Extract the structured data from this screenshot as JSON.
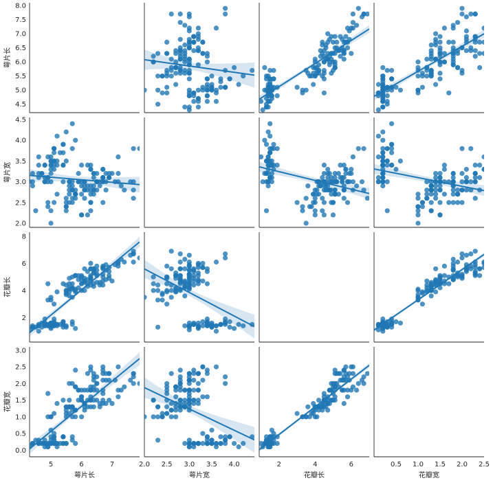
{
  "chart_data": {
    "type": "scatter",
    "kind": "pairplot-with-regression",
    "variables": [
      {
        "key": "sl",
        "label": "萼片长",
        "range": [
          4.3,
          7.9
        ],
        "ticks": [
          4.5,
          5.0,
          5.5,
          6.0,
          6.5,
          7.0,
          7.5,
          8.0
        ],
        "tick_labels": [
          "4.5",
          "5.0",
          "5.5",
          "6.0",
          "6.5",
          "7.0",
          "7.5",
          "8.0"
        ],
        "x_ticks": [
          5,
          6,
          7
        ],
        "x_tick_labels": [
          "5",
          "6",
          "7"
        ]
      },
      {
        "key": "sw",
        "label": "萼片宽",
        "range": [
          2.0,
          4.4
        ],
        "ticks": [
          2.0,
          2.5,
          3.0,
          3.5,
          4.0,
          4.5
        ],
        "tick_labels": [
          "2.0",
          "2.5",
          "3.0",
          "3.5",
          "4.0",
          "4.5"
        ],
        "x_ticks": [
          2.0,
          2.5,
          3.0,
          3.5,
          4.0
        ],
        "x_tick_labels": [
          "2.0",
          "2.5",
          "3.0",
          "3.5",
          "4.0"
        ]
      },
      {
        "key": "pl",
        "label": "花瓣长",
        "range": [
          1.0,
          6.9
        ],
        "ticks": [
          2,
          4,
          6,
          8
        ],
        "tick_labels": [
          "2",
          "4",
          "6",
          "8"
        ],
        "x_ticks": [
          2,
          4,
          6
        ],
        "x_tick_labels": [
          "2",
          "4",
          "6"
        ]
      },
      {
        "key": "pw",
        "label": "花瓣宽",
        "range": [
          0.1,
          2.5
        ],
        "ticks": [
          0.0,
          0.5,
          1.0,
          1.5,
          2.0,
          2.5,
          3.0
        ],
        "tick_labels": [
          "0.0",
          "0.5",
          "1.0",
          "1.5",
          "2.0",
          "2.5",
          "3.0"
        ],
        "x_ticks": [
          0.5,
          1.0,
          1.5,
          2.0,
          2.5
        ],
        "x_tick_labels": [
          "0.5",
          "1.0",
          "1.5",
          "2.0",
          "2.5"
        ]
      }
    ],
    "diagonal": "empty",
    "fit": "linear regression with 95% confidence band",
    "color": "#1f77b4",
    "band_color": "#1f77b4",
    "points": [
      [
        5.1,
        3.5,
        1.4,
        0.2
      ],
      [
        4.9,
        3.0,
        1.4,
        0.2
      ],
      [
        4.7,
        3.2,
        1.3,
        0.2
      ],
      [
        4.6,
        3.1,
        1.5,
        0.2
      ],
      [
        5.0,
        3.6,
        1.4,
        0.2
      ],
      [
        5.4,
        3.9,
        1.7,
        0.4
      ],
      [
        4.6,
        3.4,
        1.4,
        0.3
      ],
      [
        5.0,
        3.4,
        1.5,
        0.2
      ],
      [
        4.4,
        2.9,
        1.4,
        0.2
      ],
      [
        4.9,
        3.1,
        1.5,
        0.1
      ],
      [
        5.4,
        3.7,
        1.5,
        0.2
      ],
      [
        4.8,
        3.4,
        1.6,
        0.2
      ],
      [
        4.8,
        3.0,
        1.4,
        0.1
      ],
      [
        4.3,
        3.0,
        1.1,
        0.1
      ],
      [
        5.8,
        4.0,
        1.2,
        0.2
      ],
      [
        5.7,
        4.4,
        1.5,
        0.4
      ],
      [
        5.4,
        3.9,
        1.3,
        0.4
      ],
      [
        5.1,
        3.5,
        1.4,
        0.3
      ],
      [
        5.7,
        3.8,
        1.7,
        0.3
      ],
      [
        5.1,
        3.8,
        1.5,
        0.3
      ],
      [
        5.4,
        3.4,
        1.7,
        0.2
      ],
      [
        5.1,
        3.7,
        1.5,
        0.4
      ],
      [
        4.6,
        3.6,
        1.0,
        0.2
      ],
      [
        5.1,
        3.3,
        1.7,
        0.5
      ],
      [
        4.8,
        3.4,
        1.9,
        0.2
      ],
      [
        5.0,
        3.0,
        1.6,
        0.2
      ],
      [
        5.0,
        3.4,
        1.6,
        0.4
      ],
      [
        5.2,
        3.5,
        1.5,
        0.2
      ],
      [
        5.2,
        3.4,
        1.4,
        0.2
      ],
      [
        4.7,
        3.2,
        1.6,
        0.2
      ],
      [
        4.8,
        3.1,
        1.6,
        0.2
      ],
      [
        5.4,
        3.4,
        1.5,
        0.4
      ],
      [
        5.2,
        4.1,
        1.5,
        0.1
      ],
      [
        5.5,
        4.2,
        1.4,
        0.2
      ],
      [
        4.9,
        3.1,
        1.5,
        0.2
      ],
      [
        5.0,
        3.2,
        1.2,
        0.2
      ],
      [
        5.5,
        3.5,
        1.3,
        0.2
      ],
      [
        4.9,
        3.6,
        1.4,
        0.1
      ],
      [
        4.4,
        3.0,
        1.3,
        0.2
      ],
      [
        5.1,
        3.4,
        1.5,
        0.2
      ],
      [
        5.0,
        3.5,
        1.3,
        0.3
      ],
      [
        4.5,
        2.3,
        1.3,
        0.3
      ],
      [
        4.4,
        3.2,
        1.3,
        0.2
      ],
      [
        5.0,
        3.5,
        1.6,
        0.6
      ],
      [
        5.1,
        3.8,
        1.9,
        0.4
      ],
      [
        4.8,
        3.0,
        1.4,
        0.3
      ],
      [
        5.1,
        3.8,
        1.6,
        0.2
      ],
      [
        4.6,
        3.2,
        1.4,
        0.2
      ],
      [
        5.3,
        3.7,
        1.5,
        0.2
      ],
      [
        5.0,
        3.3,
        1.4,
        0.2
      ],
      [
        7.0,
        3.2,
        4.7,
        1.4
      ],
      [
        6.4,
        3.2,
        4.5,
        1.5
      ],
      [
        6.9,
        3.1,
        4.9,
        1.5
      ],
      [
        5.5,
        2.3,
        4.0,
        1.3
      ],
      [
        6.5,
        2.8,
        4.6,
        1.5
      ],
      [
        5.7,
        2.8,
        4.5,
        1.3
      ],
      [
        6.3,
        3.3,
        4.7,
        1.6
      ],
      [
        4.9,
        2.4,
        3.3,
        1.0
      ],
      [
        6.6,
        2.9,
        4.6,
        1.3
      ],
      [
        5.2,
        2.7,
        3.9,
        1.4
      ],
      [
        5.0,
        2.0,
        3.5,
        1.0
      ],
      [
        5.9,
        3.0,
        4.2,
        1.5
      ],
      [
        6.0,
        2.2,
        4.0,
        1.0
      ],
      [
        6.1,
        2.9,
        4.7,
        1.4
      ],
      [
        5.6,
        2.9,
        3.6,
        1.3
      ],
      [
        6.7,
        3.1,
        4.4,
        1.4
      ],
      [
        5.6,
        3.0,
        4.5,
        1.5
      ],
      [
        5.8,
        2.7,
        4.1,
        1.0
      ],
      [
        6.2,
        2.2,
        4.5,
        1.5
      ],
      [
        5.6,
        2.5,
        3.9,
        1.1
      ],
      [
        5.9,
        3.2,
        4.8,
        1.8
      ],
      [
        6.1,
        2.8,
        4.0,
        1.3
      ],
      [
        6.3,
        2.5,
        4.9,
        1.5
      ],
      [
        6.1,
        2.8,
        4.7,
        1.2
      ],
      [
        6.4,
        2.9,
        4.3,
        1.3
      ],
      [
        6.6,
        3.0,
        4.4,
        1.4
      ],
      [
        6.8,
        2.8,
        4.8,
        1.4
      ],
      [
        6.7,
        3.0,
        5.0,
        1.7
      ],
      [
        6.0,
        2.9,
        4.5,
        1.5
      ],
      [
        5.7,
        2.6,
        3.5,
        1.0
      ],
      [
        5.5,
        2.4,
        3.8,
        1.1
      ],
      [
        5.5,
        2.4,
        3.7,
        1.0
      ],
      [
        5.8,
        2.7,
        3.9,
        1.2
      ],
      [
        6.0,
        2.7,
        5.1,
        1.6
      ],
      [
        5.4,
        3.0,
        4.5,
        1.5
      ],
      [
        6.0,
        3.4,
        4.5,
        1.6
      ],
      [
        6.7,
        3.1,
        4.7,
        1.5
      ],
      [
        6.3,
        2.3,
        4.4,
        1.3
      ],
      [
        5.6,
        3.0,
        4.1,
        1.3
      ],
      [
        5.5,
        2.5,
        4.0,
        1.3
      ],
      [
        5.5,
        2.6,
        4.4,
        1.2
      ],
      [
        6.1,
        3.0,
        4.6,
        1.4
      ],
      [
        5.8,
        2.6,
        4.0,
        1.2
      ],
      [
        5.0,
        2.3,
        3.3,
        1.0
      ],
      [
        5.6,
        2.7,
        4.2,
        1.3
      ],
      [
        5.7,
        3.0,
        4.2,
        1.2
      ],
      [
        5.7,
        2.9,
        4.2,
        1.3
      ],
      [
        6.2,
        2.9,
        4.3,
        1.3
      ],
      [
        5.1,
        2.5,
        3.0,
        1.1
      ],
      [
        5.7,
        2.8,
        4.1,
        1.3
      ],
      [
        6.3,
        3.3,
        6.0,
        2.5
      ],
      [
        5.8,
        2.7,
        5.1,
        1.9
      ],
      [
        7.1,
        3.0,
        5.9,
        2.1
      ],
      [
        6.3,
        2.9,
        5.6,
        1.8
      ],
      [
        6.5,
        3.0,
        5.8,
        2.2
      ],
      [
        7.6,
        3.0,
        6.6,
        2.1
      ],
      [
        4.9,
        2.5,
        4.5,
        1.7
      ],
      [
        7.3,
        2.9,
        6.3,
        1.8
      ],
      [
        6.7,
        2.5,
        5.8,
        1.8
      ],
      [
        7.2,
        3.6,
        6.1,
        2.5
      ],
      [
        6.5,
        3.2,
        5.1,
        2.0
      ],
      [
        6.4,
        2.7,
        5.3,
        1.9
      ],
      [
        6.8,
        3.0,
        5.5,
        2.1
      ],
      [
        5.7,
        2.5,
        5.0,
        2.0
      ],
      [
        5.8,
        2.8,
        5.1,
        2.4
      ],
      [
        6.4,
        3.2,
        5.3,
        2.3
      ],
      [
        6.5,
        3.0,
        5.5,
        1.8
      ],
      [
        7.7,
        3.8,
        6.7,
        2.2
      ],
      [
        7.7,
        2.6,
        6.9,
        2.3
      ],
      [
        6.0,
        2.2,
        5.0,
        1.5
      ],
      [
        6.9,
        3.2,
        5.7,
        2.3
      ],
      [
        5.6,
        2.8,
        4.9,
        2.0
      ],
      [
        7.7,
        2.8,
        6.7,
        2.0
      ],
      [
        6.3,
        2.7,
        4.9,
        1.8
      ],
      [
        6.7,
        3.3,
        5.7,
        2.1
      ],
      [
        7.2,
        3.2,
        6.0,
        1.8
      ],
      [
        6.2,
        2.8,
        4.8,
        1.8
      ],
      [
        6.1,
        3.0,
        4.9,
        1.8
      ],
      [
        6.4,
        2.8,
        5.6,
        2.1
      ],
      [
        7.2,
        3.0,
        5.8,
        1.6
      ],
      [
        7.4,
        2.8,
        6.1,
        1.9
      ],
      [
        7.9,
        3.8,
        6.4,
        2.0
      ],
      [
        6.4,
        2.8,
        5.6,
        2.2
      ],
      [
        6.3,
        2.8,
        5.1,
        1.5
      ],
      [
        6.1,
        2.6,
        5.6,
        1.4
      ],
      [
        7.7,
        3.0,
        6.1,
        2.3
      ],
      [
        6.3,
        3.4,
        5.6,
        2.4
      ],
      [
        6.4,
        3.1,
        5.5,
        1.8
      ],
      [
        6.0,
        3.0,
        4.8,
        1.8
      ],
      [
        6.9,
        3.1,
        5.4,
        2.1
      ],
      [
        6.7,
        3.1,
        5.6,
        2.4
      ],
      [
        6.9,
        3.1,
        5.1,
        2.3
      ],
      [
        5.8,
        2.7,
        5.1,
        1.9
      ],
      [
        6.8,
        3.2,
        5.9,
        2.3
      ],
      [
        6.7,
        3.3,
        5.7,
        2.5
      ],
      [
        6.7,
        3.0,
        5.2,
        2.3
      ],
      [
        6.3,
        2.5,
        5.0,
        1.9
      ],
      [
        6.5,
        3.0,
        5.2,
        2.0
      ],
      [
        6.2,
        3.4,
        5.4,
        2.3
      ],
      [
        5.9,
        3.0,
        5.1,
        1.8
      ]
    ]
  }
}
